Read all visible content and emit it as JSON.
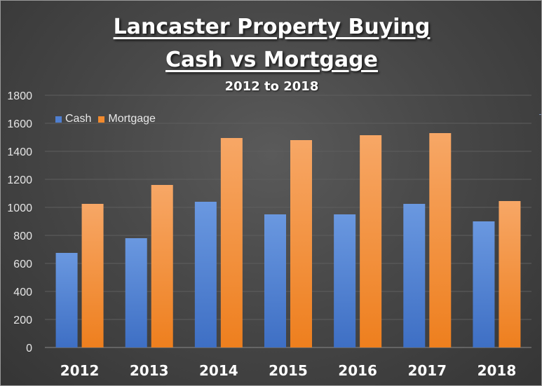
{
  "chart_data": {
    "type": "bar",
    "title": "Lancaster Property Buying",
    "title_line2": "Cash vs Mortgage",
    "subtitle": "2012 to 2018",
    "categories": [
      "2012",
      "2013",
      "2014",
      "2015",
      "2016",
      "2017",
      "2018"
    ],
    "series": [
      {
        "name": "Cash",
        "color": "#4f7fd0",
        "values": [
          675,
          780,
          1040,
          950,
          950,
          1025,
          900
        ]
      },
      {
        "name": "Mortgage",
        "color": "#f28a2e",
        "values": [
          1025,
          1160,
          1495,
          1480,
          1515,
          1530,
          1045
        ]
      }
    ],
    "ylim": [
      0,
      1800
    ],
    "yticks": [
      0,
      200,
      400,
      600,
      800,
      1000,
      1200,
      1400,
      1600,
      1800
    ],
    "grid": true,
    "legend_position": "top-left"
  }
}
